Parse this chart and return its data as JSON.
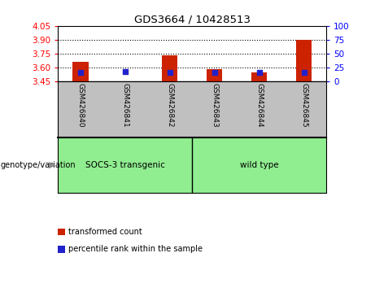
{
  "title": "GDS3664 / 10428513",
  "samples": [
    "GSM426840",
    "GSM426841",
    "GSM426842",
    "GSM426843",
    "GSM426844",
    "GSM426845"
  ],
  "transformed_count": [
    3.665,
    3.455,
    3.735,
    3.585,
    3.545,
    3.9
  ],
  "blue_pct": [
    17,
    18,
    17,
    17,
    16,
    17
  ],
  "ylim_left": [
    3.45,
    4.05
  ],
  "ylim_right": [
    0,
    100
  ],
  "yticks_left": [
    3.45,
    3.6,
    3.75,
    3.9,
    4.05
  ],
  "yticks_right": [
    0,
    25,
    50,
    75,
    100
  ],
  "hlines": [
    3.6,
    3.75,
    3.9
  ],
  "bar_color": "#CC2200",
  "blue_color": "#2222CC",
  "bar_base": 3.45,
  "bar_width": 0.35,
  "blue_square_size": 18,
  "group1_label": "SOCS-3 transgenic",
  "group2_label": "wild type",
  "group1_indices": [
    0,
    1,
    2
  ],
  "group2_indices": [
    3,
    4,
    5
  ],
  "group_color": "#90EE90",
  "xlabel_bg_color": "#C0C0C0",
  "legend_items": [
    {
      "label": "transformed count",
      "color": "#CC2200"
    },
    {
      "label": "percentile rank within the sample",
      "color": "#2222CC"
    }
  ],
  "genotype_label": "genotype/variation",
  "background_color": "#ffffff",
  "plot_bg_color": "#ffffff"
}
